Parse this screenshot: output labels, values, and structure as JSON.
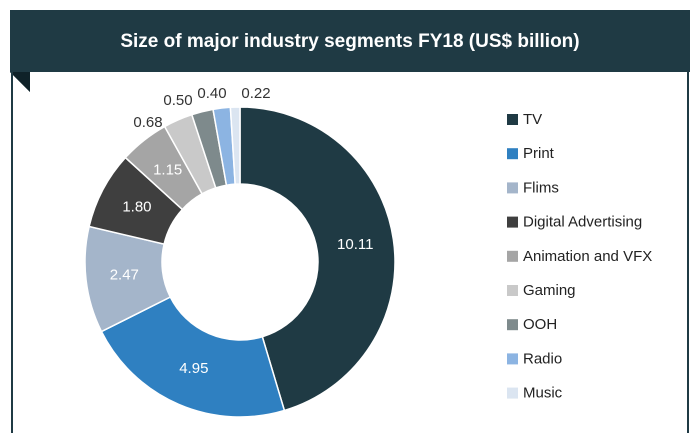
{
  "chart_data": {
    "type": "donut",
    "title": "Size of major industry segments FY18 (US$ billion)",
    "categories": [
      "TV",
      "Print",
      "Flims",
      "Digital Advertising",
      "Animation and VFX",
      "Gaming",
      "OOH",
      "Radio",
      "Music"
    ],
    "values": [
      10.11,
      4.95,
      2.47,
      1.8,
      1.15,
      0.68,
      0.5,
      0.4,
      0.22
    ],
    "value_labels": [
      "10.11",
      "4.95",
      "2.47",
      "1.80",
      "1.15",
      "0.68",
      "0.50",
      "0.40",
      "0.22"
    ],
    "colors": [
      "#1f3a44",
      "#2f80c1",
      "#a4b5ca",
      "#3f3f3f",
      "#a5a5a5",
      "#c9c9c9",
      "#7e8a8c",
      "#8cb4e2",
      "#dbe5f1"
    ],
    "legend": "right"
  }
}
